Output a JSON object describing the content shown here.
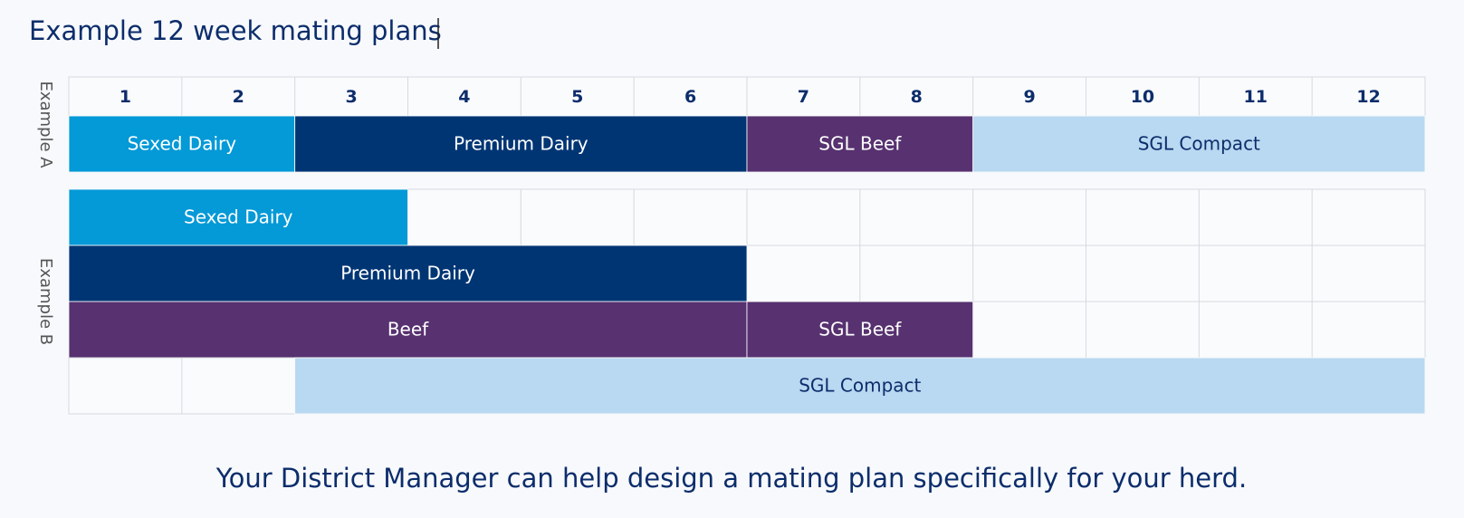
{
  "title": "Example 12 week mating plans",
  "weeks": [
    1,
    2,
    3,
    4,
    5,
    6,
    7,
    8,
    9,
    10,
    11,
    12
  ],
  "examples": [
    {
      "label": "Example A",
      "rows": [
        [
          {
            "label": "Sexed Dairy",
            "start": 1,
            "end": 2,
            "color": "#0499d7",
            "text_color": "#ffffff"
          },
          {
            "label": "Premium Dairy",
            "start": 3,
            "end": 6,
            "color": "#003574",
            "text_color": "#ffffff"
          },
          {
            "label": "SGL Beef",
            "start": 7,
            "end": 8,
            "color": "#573170",
            "text_color": "#ffffff"
          },
          {
            "label": "SGL Compact",
            "start": 9,
            "end": 12,
            "color": "#b9d8f1",
            "text_color": "#0c2d6b"
          }
        ]
      ]
    },
    {
      "label": "Example B",
      "rows": [
        [
          {
            "label": "Sexed Dairy",
            "start": 1,
            "end": 3,
            "color": "#0499d7",
            "text_color": "#ffffff"
          }
        ],
        [
          {
            "label": "Premium Dairy",
            "start": 1,
            "end": 6,
            "color": "#003574",
            "text_color": "#ffffff"
          }
        ],
        [
          {
            "label": "Beef",
            "start": 1,
            "end": 6,
            "color": "#573170",
            "text_color": "#ffffff"
          },
          {
            "label": "SGL Beef",
            "start": 7,
            "end": 8,
            "color": "#573170",
            "text_color": "#ffffff"
          }
        ],
        [
          {
            "label": "SGL Compact",
            "start": 3,
            "end": 12,
            "color": "#b9d8f1",
            "text_color": "#0c2d6b"
          }
        ]
      ]
    }
  ],
  "footer": "Your District Manager can help design a mating plan specifically for your herd."
}
